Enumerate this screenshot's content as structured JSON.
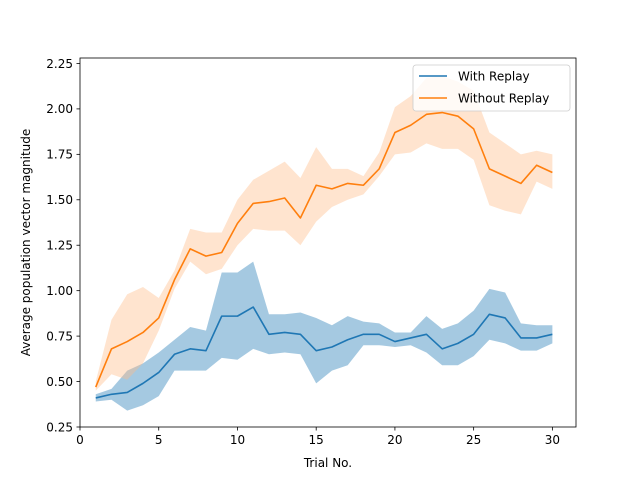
{
  "chart_data": {
    "type": "line",
    "title": "",
    "xlabel": "Trial No.",
    "ylabel": "Average population vector magnitude",
    "xlim": [
      0.0,
      31.5
    ],
    "ylim": [
      0.25,
      2.28
    ],
    "xticks": [
      0,
      5,
      10,
      15,
      20,
      25,
      30
    ],
    "yticks": [
      0.25,
      0.5,
      0.75,
      1.0,
      1.25,
      1.5,
      1.75,
      2.0,
      2.25
    ],
    "ytick_labels": [
      "0.25",
      "0.50",
      "0.75",
      "1.00",
      "1.25",
      "1.50",
      "1.75",
      "2.00",
      "2.25"
    ],
    "grid": false,
    "legend_position": "top-right",
    "x": [
      1,
      2,
      3,
      4,
      5,
      6,
      7,
      8,
      9,
      10,
      11,
      12,
      13,
      14,
      15,
      16,
      17,
      18,
      19,
      20,
      21,
      22,
      23,
      24,
      25,
      26,
      27,
      28,
      29,
      30
    ],
    "series": [
      {
        "name": "With Replay",
        "color": "#1f77b4",
        "values": [
          0.41,
          0.43,
          0.44,
          0.49,
          0.55,
          0.65,
          0.68,
          0.67,
          0.86,
          0.86,
          0.91,
          0.76,
          0.77,
          0.76,
          0.67,
          0.69,
          0.73,
          0.76,
          0.76,
          0.72,
          0.74,
          0.76,
          0.68,
          0.71,
          0.76,
          0.87,
          0.85,
          0.74,
          0.74,
          0.76
        ],
        "lower": [
          0.39,
          0.4,
          0.34,
          0.37,
          0.42,
          0.56,
          0.56,
          0.56,
          0.63,
          0.62,
          0.68,
          0.65,
          0.66,
          0.65,
          0.49,
          0.56,
          0.59,
          0.7,
          0.7,
          0.69,
          0.7,
          0.66,
          0.59,
          0.59,
          0.64,
          0.73,
          0.71,
          0.67,
          0.67,
          0.71
        ],
        "upper": [
          0.43,
          0.46,
          0.56,
          0.6,
          0.66,
          0.73,
          0.8,
          0.78,
          1.1,
          1.1,
          1.16,
          0.87,
          0.87,
          0.88,
          0.85,
          0.81,
          0.86,
          0.83,
          0.82,
          0.77,
          0.77,
          0.86,
          0.79,
          0.82,
          0.89,
          1.01,
          0.99,
          0.82,
          0.81,
          0.81
        ],
        "band_color": "#1f77b4"
      },
      {
        "name": "Without Replay",
        "color": "#ff7f0e",
        "values": [
          0.47,
          0.68,
          0.72,
          0.77,
          0.85,
          1.06,
          1.23,
          1.19,
          1.21,
          1.37,
          1.48,
          1.49,
          1.51,
          1.4,
          1.58,
          1.56,
          1.59,
          1.58,
          1.67,
          1.87,
          1.91,
          1.97,
          1.98,
          1.96,
          1.89,
          1.67,
          1.63,
          1.59,
          1.69,
          1.65
        ],
        "lower": [
          0.45,
          0.54,
          0.51,
          0.6,
          0.78,
          1.01,
          1.16,
          1.09,
          1.12,
          1.25,
          1.34,
          1.33,
          1.33,
          1.25,
          1.38,
          1.46,
          1.5,
          1.53,
          1.63,
          1.75,
          1.76,
          1.81,
          1.78,
          1.78,
          1.72,
          1.47,
          1.44,
          1.42,
          1.6,
          1.56
        ],
        "upper": [
          0.5,
          0.84,
          0.98,
          1.02,
          0.96,
          1.11,
          1.34,
          1.32,
          1.32,
          1.5,
          1.61,
          1.66,
          1.71,
          1.62,
          1.79,
          1.67,
          1.67,
          1.63,
          1.76,
          2.01,
          2.07,
          2.17,
          2.18,
          2.15,
          2.1,
          1.87,
          1.81,
          1.75,
          1.77,
          1.75
        ],
        "band_color": "#ffbb88"
      }
    ]
  }
}
